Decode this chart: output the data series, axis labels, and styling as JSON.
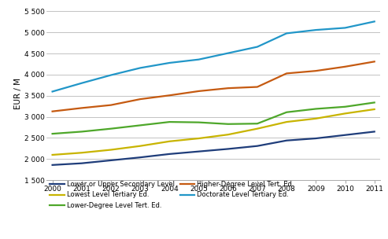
{
  "years": [
    2000,
    2001,
    2002,
    2003,
    2004,
    2005,
    2006,
    2007,
    2008,
    2009,
    2010,
    2011
  ],
  "series": {
    "Lower or Upper Secondary Level": {
      "values": [
        1860,
        1900,
        1970,
        2040,
        2120,
        2180,
        2240,
        2310,
        2440,
        2490,
        2570,
        2650
      ],
      "color": "#1F3D7A",
      "linewidth": 1.6
    },
    "Lowest Level Tertiary Ed.": {
      "values": [
        2100,
        2150,
        2220,
        2310,
        2420,
        2490,
        2580,
        2720,
        2880,
        2960,
        3080,
        3180
      ],
      "color": "#C8B400",
      "linewidth": 1.6
    },
    "Lower-Degree Level Tert. Ed.": {
      "values": [
        2600,
        2650,
        2720,
        2800,
        2880,
        2870,
        2830,
        2840,
        3110,
        3190,
        3240,
        3340
      ],
      "color": "#4EA72A",
      "linewidth": 1.6
    },
    "Higher-Degree Level Tert. Ed.": {
      "values": [
        3130,
        3210,
        3280,
        3420,
        3510,
        3610,
        3680,
        3710,
        4030,
        4090,
        4190,
        4310
      ],
      "color": "#C55A11",
      "linewidth": 1.6
    },
    "Doctorate Level Tertiary Ed.": {
      "values": [
        3600,
        3800,
        3990,
        4160,
        4280,
        4360,
        4510,
        4660,
        4980,
        5060,
        5110,
        5260
      ],
      "color": "#2196C8",
      "linewidth": 1.6
    }
  },
  "ylabel": "EUR / M",
  "ylim": [
    1500,
    5600
  ],
  "yticks": [
    1500,
    2000,
    2500,
    3000,
    3500,
    4000,
    4500,
    5000,
    5500
  ],
  "ytick_labels": [
    "1 500",
    "2 000",
    "2 500",
    "3 000",
    "3 500",
    "4 000",
    "4 500",
    "5 000",
    "5 500"
  ],
  "background_color": "#FFFFFF",
  "plot_bg_color": "#FFFFFF",
  "grid_color": "#AAAAAA",
  "legend_cols": 2,
  "legend_order": [
    "Lower or Upper Secondary Level",
    "Lowest Level Tertiary Ed.",
    "Lower-Degree Level Tert. Ed.",
    "Higher-Degree Level Tert. Ed.",
    "Doctorate Level Tertiary Ed."
  ]
}
